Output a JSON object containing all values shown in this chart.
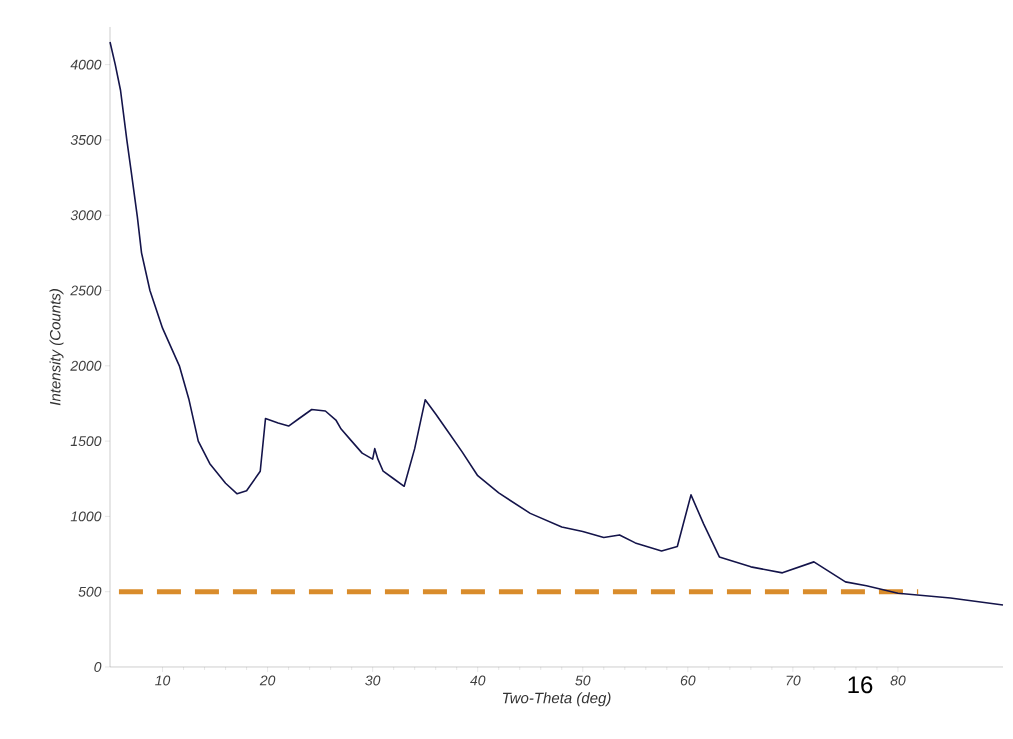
{
  "chart_data": {
    "type": "line",
    "xlabel": "Two-Theta (deg)",
    "ylabel": "Intensity (Counts)",
    "x": [
      5,
      5.5,
      6,
      6.6,
      7,
      7.6,
      8,
      8.8,
      10,
      11.6,
      12.5,
      13.4,
      14.5,
      16,
      17.1,
      18,
      19.3,
      19.8,
      21,
      22,
      23,
      24.2,
      25.5,
      26.5,
      27,
      28,
      29,
      30,
      30.2,
      30.5,
      31,
      32,
      33,
      34,
      35,
      36,
      37,
      38.5,
      40,
      42,
      45,
      48,
      50,
      52,
      53.5,
      55,
      57.5,
      59,
      60.3,
      61.5,
      63,
      66,
      69,
      72,
      75,
      77,
      80,
      85,
      90
    ],
    "series": [
      {
        "color": "#14144a",
        "values": [
          4150,
          4000,
          3830,
          3500,
          3300,
          2990,
          2750,
          2500,
          2250,
          2000,
          1780,
          1500,
          1350,
          1220,
          1150,
          1170,
          1300,
          1650,
          1620,
          1600,
          1650,
          1710,
          1700,
          1640,
          1580,
          1500,
          1420,
          1380,
          1450,
          1380,
          1300,
          1250,
          1200,
          1450,
          1774,
          1680,
          1580,
          1430,
          1270,
          1156,
          1020,
          930,
          900,
          860,
          877,
          824,
          770,
          800,
          1143,
          950,
          731,
          665,
          625,
          698,
          565,
          540,
          490,
          458,
          412
        ]
      }
    ],
    "xlim": [
      5,
      90
    ],
    "ylim": [
      0,
      4250
    ],
    "xticks": [
      10,
      20,
      30,
      40,
      50,
      60,
      70,
      80
    ],
    "yticks": [
      0,
      500,
      1000,
      1500,
      2000,
      2500,
      3000,
      3500,
      4000
    ],
    "ref_lines": [
      {
        "axis": "y",
        "value": 500,
        "color": "#d98c2b",
        "line_style": "dashed"
      }
    ],
    "annotations": [
      "16"
    ],
    "grid": false,
    "marker": "none",
    "line_style": "solid"
  }
}
